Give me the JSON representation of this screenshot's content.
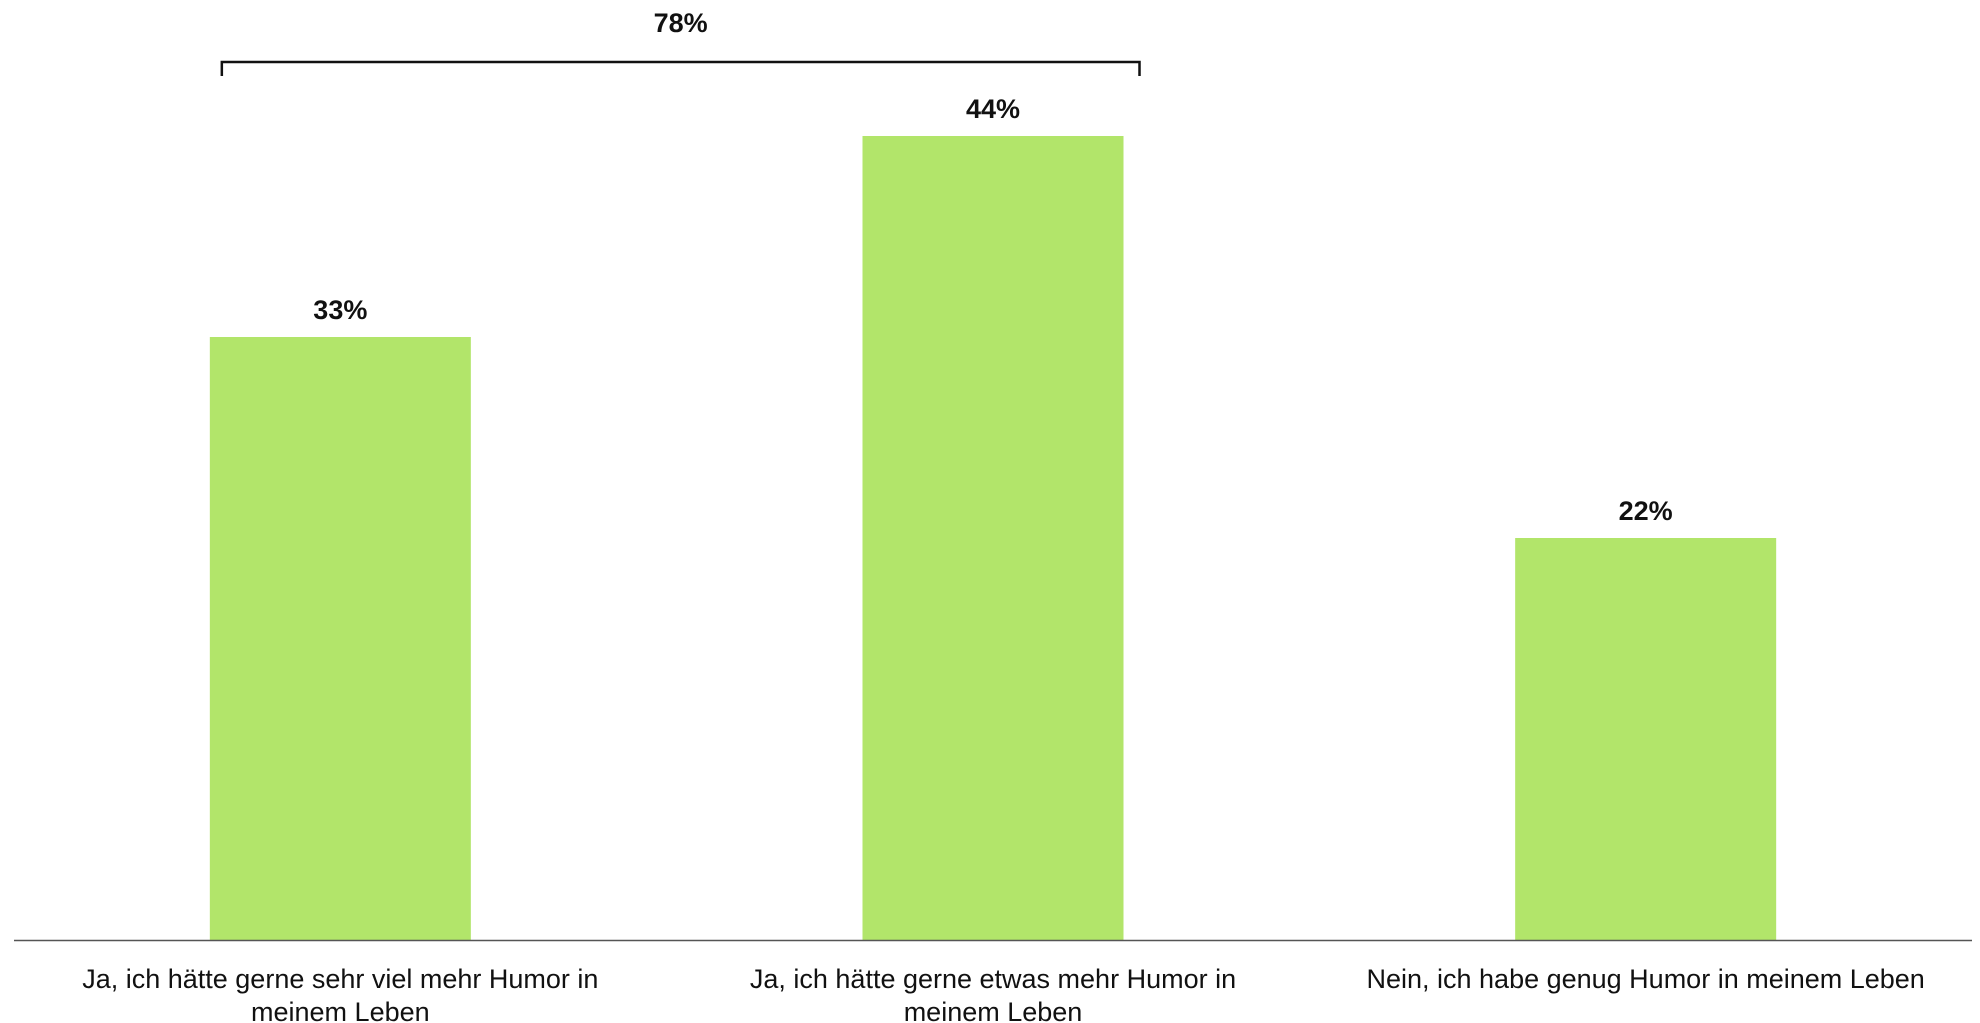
{
  "chart_data": {
    "type": "bar",
    "categories": [
      [
        "Ja, ich hätte gerne sehr viel mehr Humor in",
        "meinem Leben"
      ],
      [
        "Ja, ich hätte gerne etwas mehr Humor in",
        "meinem Leben"
      ],
      [
        "Nein, ich habe genug Humor in meinem Leben"
      ]
    ],
    "values": [
      33,
      44,
      22
    ],
    "data_labels": [
      "33%",
      "44%",
      "22%"
    ],
    "title": "",
    "xlabel": "",
    "ylabel": "",
    "ylim": [
      0,
      44
    ],
    "grid": false,
    "legend": "none",
    "bar_color": "#b2e56a",
    "axis_color": "#555555",
    "annotations": [
      {
        "type": "bracket",
        "from_category": 0,
        "to_category": 1,
        "label": "78%"
      }
    ]
  }
}
